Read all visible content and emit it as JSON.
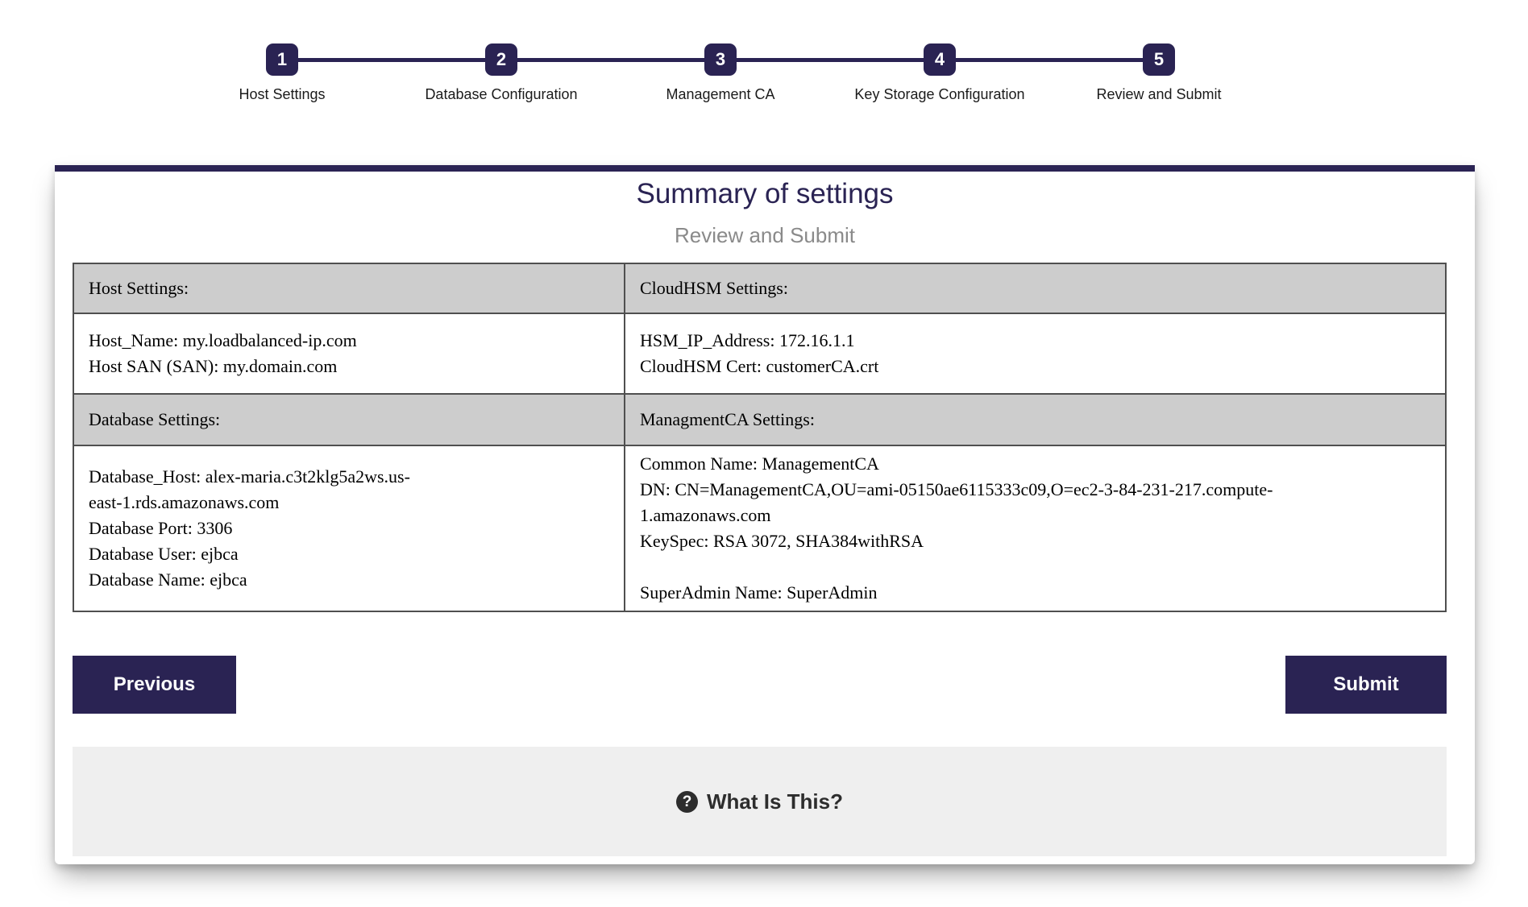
{
  "theme": {
    "accent_navy": "#2a2353",
    "table_header_gray": "#cdcdcd",
    "footer_gray": "#efefef"
  },
  "stepper": {
    "steps": [
      {
        "number": "1",
        "label": "Host Settings"
      },
      {
        "number": "2",
        "label": "Database Configuration"
      },
      {
        "number": "3",
        "label": "Management CA"
      },
      {
        "number": "4",
        "label": "Key Storage Configuration"
      },
      {
        "number": "5",
        "label": "Review and Submit"
      }
    ]
  },
  "card": {
    "title": "Summary of settings",
    "subtitle": "Review and Submit",
    "table": {
      "section1": {
        "left_header": "Host Settings:",
        "right_header": "CloudHSM Settings:",
        "left_lines": [
          "Host_Name: my.loadbalanced-ip.com",
          "Host SAN (SAN): my.domain.com"
        ],
        "right_lines": [
          "HSM_IP_Address: 172.16.1.1",
          "CloudHSM Cert: customerCA.crt"
        ]
      },
      "section2": {
        "left_header": "Database Settings:",
        "right_header": "ManagmentCA Settings:",
        "left_lines": [
          "Database_Host: alex-maria.c3t2klg5a2ws.us-",
          "east-1.rds.amazonaws.com",
          "Database Port: 3306",
          "Database User: ejbca",
          "Database Name: ejbca"
        ],
        "right_lines": [
          "Common Name: ManagementCA",
          "DN: CN=ManagementCA,OU=ami-05150ae6115333c09,O=ec2-3-84-231-217.compute-",
          "1.amazonaws.com",
          "KeySpec: RSA 3072, SHA384withRSA",
          "",
          "SuperAdmin Name: SuperAdmin"
        ]
      }
    },
    "buttons": {
      "previous": "Previous",
      "submit": "Submit"
    },
    "footer": {
      "help_icon": "?",
      "help_text": "What Is This?"
    }
  }
}
